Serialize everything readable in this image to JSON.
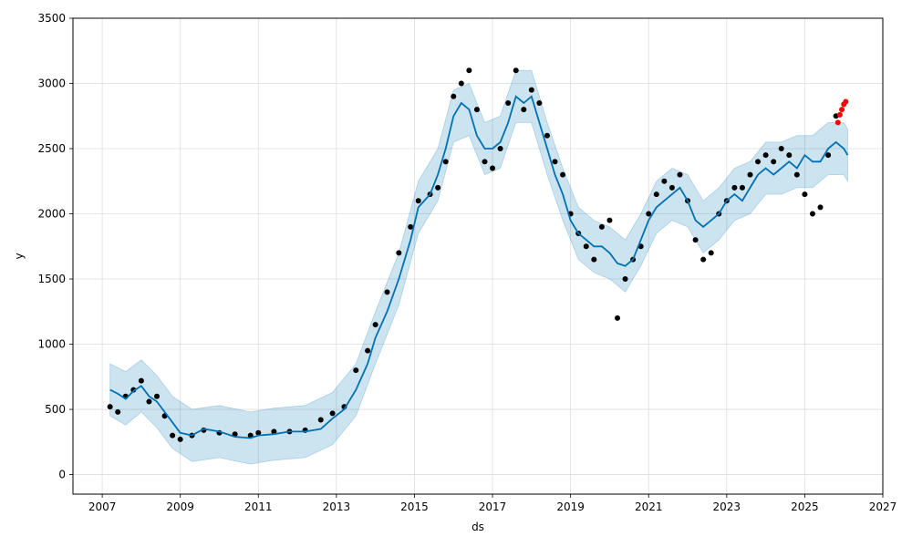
{
  "chart_data": {
    "type": "line",
    "title": "",
    "xlabel": "ds",
    "ylabel": "y",
    "xlim": [
      2006.25,
      2027.0
    ],
    "ylim": [
      -150,
      3500
    ],
    "grid": true,
    "x_ticks": [
      "2007",
      "2009",
      "2011",
      "2013",
      "2015",
      "2017",
      "2019",
      "2021",
      "2023",
      "2025",
      "2027"
    ],
    "y_ticks": [
      "0",
      "500",
      "1000",
      "1500",
      "2000",
      "2500",
      "3000",
      "3500"
    ],
    "colors": {
      "observed": "#000000",
      "recent_observed": "#ff0000",
      "forecast": "#0072B2",
      "interval": "#0072B2",
      "grid": "#dddddd"
    },
    "series": [
      {
        "name": "observed",
        "kind": "scatter",
        "x": [
          2007.2,
          2007.4,
          2007.6,
          2007.8,
          2008.0,
          2008.2,
          2008.4,
          2008.6,
          2008.8,
          2009.0,
          2009.3,
          2009.6,
          2010.0,
          2010.4,
          2010.8,
          2011.0,
          2011.4,
          2011.8,
          2012.2,
          2012.6,
          2012.9,
          2013.2,
          2013.5,
          2013.8,
          2014.0,
          2014.3,
          2014.6,
          2014.9,
          2015.1,
          2015.4,
          2015.6,
          2015.8,
          2016.0,
          2016.2,
          2016.4,
          2016.6,
          2016.8,
          2017.0,
          2017.2,
          2017.4,
          2017.6,
          2017.8,
          2018.0,
          2018.2,
          2018.4,
          2018.6,
          2018.8,
          2019.0,
          2019.2,
          2019.4,
          2019.6,
          2019.8,
          2020.0,
          2020.2,
          2020.4,
          2020.6,
          2020.8,
          2021.0,
          2021.2,
          2021.4,
          2021.6,
          2021.8,
          2022.0,
          2022.2,
          2022.4,
          2022.6,
          2022.8,
          2023.0,
          2023.2,
          2023.4,
          2023.6,
          2023.8,
          2024.0,
          2024.2,
          2024.4,
          2024.6,
          2024.8,
          2025.0,
          2025.2,
          2025.4,
          2025.6,
          2025.8
        ],
        "y": [
          520,
          480,
          600,
          650,
          720,
          560,
          600,
          450,
          300,
          270,
          300,
          340,
          320,
          310,
          300,
          320,
          330,
          330,
          340,
          420,
          470,
          520,
          800,
          950,
          1150,
          1400,
          1700,
          1900,
          2100,
          2150,
          2200,
          2400,
          2900,
          3000,
          3100,
          2800,
          2400,
          2350,
          2500,
          2850,
          3100,
          2800,
          2950,
          2850,
          2600,
          2400,
          2300,
          2000,
          1850,
          1750,
          1650,
          1900,
          1950,
          1200,
          1500,
          1650,
          1750,
          2000,
          2150,
          2250,
          2200,
          2300,
          2100,
          1800,
          1650,
          1700,
          2000,
          2100,
          2200,
          2200,
          2300,
          2400,
          2450,
          2400,
          2500,
          2450,
          2300,
          2150,
          2000,
          2050,
          2450,
          2750
        ]
      },
      {
        "name": "recent observed",
        "kind": "scatter",
        "x": [
          2025.85,
          2025.9,
          2025.95,
          2026.0,
          2026.05
        ],
        "y": [
          2700,
          2760,
          2800,
          2840,
          2860
        ]
      },
      {
        "name": "forecast",
        "kind": "line",
        "x": [
          2007.2,
          2007.4,
          2007.6,
          2007.8,
          2008.0,
          2008.2,
          2008.4,
          2008.6,
          2008.8,
          2009.0,
          2009.3,
          2009.6,
          2010.0,
          2010.4,
          2010.8,
          2011.0,
          2011.4,
          2011.8,
          2012.2,
          2012.6,
          2012.9,
          2013.2,
          2013.5,
          2013.8,
          2014.0,
          2014.3,
          2014.6,
          2014.9,
          2015.1,
          2015.4,
          2015.6,
          2015.8,
          2016.0,
          2016.2,
          2016.4,
          2016.6,
          2016.8,
          2017.0,
          2017.2,
          2017.4,
          2017.6,
          2017.8,
          2018.0,
          2018.2,
          2018.4,
          2018.6,
          2018.8,
          2019.0,
          2019.2,
          2019.4,
          2019.6,
          2019.8,
          2020.0,
          2020.2,
          2020.4,
          2020.6,
          2020.8,
          2021.0,
          2021.2,
          2021.4,
          2021.6,
          2021.8,
          2022.0,
          2022.2,
          2022.4,
          2022.6,
          2022.8,
          2023.0,
          2023.2,
          2023.4,
          2023.6,
          2023.8,
          2024.0,
          2024.2,
          2024.4,
          2024.6,
          2024.8,
          2025.0,
          2025.2,
          2025.4,
          2025.6,
          2025.8,
          2026.0,
          2026.1
        ],
        "y": [
          650,
          620,
          580,
          640,
          680,
          600,
          560,
          480,
          400,
          320,
          300,
          350,
          330,
          290,
          280,
          300,
          310,
          330,
          330,
          350,
          430,
          500,
          650,
          850,
          1050,
          1250,
          1500,
          1800,
          2050,
          2150,
          2300,
          2500,
          2750,
          2850,
          2800,
          2600,
          2500,
          2500,
          2550,
          2700,
          2900,
          2850,
          2900,
          2700,
          2500,
          2300,
          2150,
          1950,
          1850,
          1800,
          1750,
          1750,
          1700,
          1620,
          1600,
          1650,
          1800,
          1950,
          2050,
          2100,
          2150,
          2200,
          2100,
          1950,
          1900,
          1950,
          2000,
          2100,
          2150,
          2100,
          2200,
          2300,
          2350,
          2300,
          2350,
          2400,
          2350,
          2450,
          2400,
          2400,
          2500,
          2550,
          2500,
          2450
        ]
      },
      {
        "name": "uncertainty interval",
        "kind": "band",
        "x": [
          2007.2,
          2007.6,
          2008.0,
          2008.4,
          2008.8,
          2009.3,
          2010.0,
          2010.8,
          2011.4,
          2012.2,
          2012.9,
          2013.5,
          2014.0,
          2014.6,
          2015.1,
          2015.6,
          2016.0,
          2016.4,
          2016.8,
          2017.2,
          2017.6,
          2018.0,
          2018.4,
          2018.8,
          2019.2,
          2019.6,
          2020.0,
          2020.4,
          2020.8,
          2021.2,
          2021.6,
          2022.0,
          2022.4,
          2022.8,
          2023.2,
          2023.6,
          2024.0,
          2024.4,
          2024.8,
          2025.2,
          2025.6,
          2026.0,
          2026.1
        ],
        "lower": [
          450,
          380,
          480,
          360,
          200,
          100,
          130,
          80,
          110,
          130,
          230,
          450,
          850,
          1300,
          1850,
          2100,
          2550,
          2600,
          2300,
          2350,
          2700,
          2700,
          2300,
          1950,
          1650,
          1550,
          1500,
          1400,
          1600,
          1850,
          1950,
          1900,
          1700,
          1800,
          1950,
          2000,
          2150,
          2150,
          2200,
          2200,
          2300,
          2300,
          2250
        ],
        "upper": [
          850,
          790,
          880,
          760,
          600,
          500,
          530,
          480,
          510,
          530,
          630,
          850,
          1250,
          1700,
          2250,
          2500,
          2950,
          3000,
          2700,
          2750,
          3100,
          3100,
          2700,
          2350,
          2050,
          1950,
          1900,
          1800,
          2000,
          2250,
          2350,
          2300,
          2100,
          2200,
          2350,
          2400,
          2550,
          2550,
          2600,
          2600,
          2700,
          2700,
          2650
        ]
      }
    ]
  }
}
